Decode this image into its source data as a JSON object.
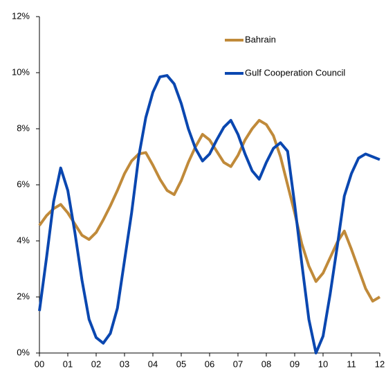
{
  "chart_data": {
    "type": "line",
    "x": [
      0,
      0.25,
      0.5,
      0.75,
      1,
      1.25,
      1.5,
      1.75,
      2,
      2.25,
      2.5,
      2.75,
      3,
      3.25,
      3.5,
      3.75,
      4,
      4.25,
      4.5,
      4.75,
      5,
      5.25,
      5.5,
      5.75,
      6,
      6.25,
      6.5,
      6.75,
      7,
      7.25,
      7.5,
      7.75,
      8,
      8.25,
      8.5,
      8.75,
      9,
      9.25,
      9.5,
      9.75,
      10,
      10.25,
      10.5,
      10.75,
      11,
      11.25,
      11.5,
      11.75,
      12
    ],
    "series": [
      {
        "name": "Bahrain",
        "color": "#c08a3a",
        "values": [
          4.55,
          4.9,
          5.15,
          5.3,
          5.0,
          4.6,
          4.2,
          4.05,
          4.3,
          4.75,
          5.25,
          5.8,
          6.4,
          6.85,
          7.1,
          7.15,
          6.7,
          6.2,
          5.8,
          5.65,
          6.15,
          6.8,
          7.35,
          7.8,
          7.6,
          7.2,
          6.8,
          6.65,
          7.05,
          7.6,
          8.0,
          8.3,
          8.15,
          7.75,
          7.0,
          6.0,
          5.0,
          3.9,
          3.1,
          2.55,
          2.85,
          3.4,
          3.95,
          4.35,
          3.7,
          3.0,
          2.3,
          1.85,
          2.0
        ]
      },
      {
        "name": "Gulf Cooperation Council",
        "color": "#0a47b0",
        "values": [
          1.5,
          3.4,
          5.4,
          6.6,
          5.8,
          4.3,
          2.6,
          1.2,
          0.55,
          0.35,
          0.7,
          1.6,
          3.3,
          5.0,
          7.0,
          8.4,
          9.3,
          9.85,
          9.9,
          9.6,
          8.9,
          8.0,
          7.3,
          6.85,
          7.1,
          7.6,
          8.05,
          8.3,
          7.8,
          7.1,
          6.5,
          6.2,
          6.8,
          7.3,
          7.5,
          7.2,
          5.3,
          3.2,
          1.2,
          0.0,
          0.6,
          2.1,
          3.8,
          5.6,
          6.4,
          6.95,
          7.1,
          7.0,
          6.9
        ]
      }
    ],
    "xlim": [
      0,
      12
    ],
    "xticks": [
      {
        "value": 0,
        "label": "00"
      },
      {
        "value": 1,
        "label": "01"
      },
      {
        "value": 2,
        "label": "02"
      },
      {
        "value": 3,
        "label": "03"
      },
      {
        "value": 4,
        "label": "04"
      },
      {
        "value": 5,
        "label": "05"
      },
      {
        "value": 6,
        "label": "06"
      },
      {
        "value": 7,
        "label": "07"
      },
      {
        "value": 8,
        "label": "08"
      },
      {
        "value": 9,
        "label": "09"
      },
      {
        "value": 10,
        "label": "10"
      },
      {
        "value": 11,
        "label": "11"
      },
      {
        "value": 12,
        "label": "12"
      }
    ],
    "ylim": [
      0,
      12
    ],
    "yticks": [
      {
        "value": 0,
        "label": "0%"
      },
      {
        "value": 2,
        "label": "2%"
      },
      {
        "value": 4,
        "label": "4%"
      },
      {
        "value": 6,
        "label": "6%"
      },
      {
        "value": 8,
        "label": "8%"
      },
      {
        "value": 10,
        "label": "10%"
      },
      {
        "value": 12,
        "label": "12%"
      }
    ],
    "grid": false,
    "legend": "upper-right"
  }
}
